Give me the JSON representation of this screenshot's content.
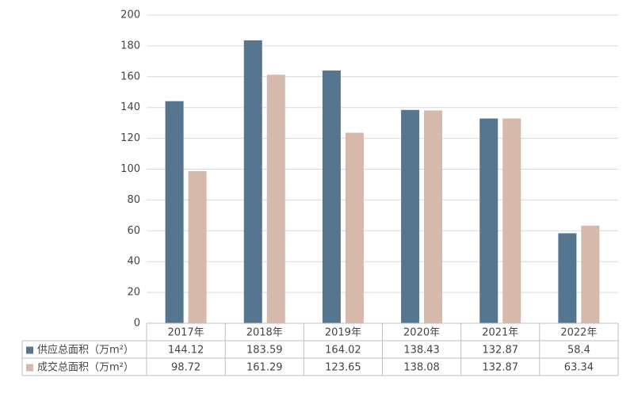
{
  "chart_data": {
    "type": "bar",
    "categories": [
      "2017年",
      "2018年",
      "2019年",
      "2020年",
      "2021年",
      "2022年"
    ],
    "series": [
      {
        "name": "供应总面积（万m²）",
        "color": "#56758f",
        "values": [
          144.12,
          183.59,
          164.02,
          138.43,
          132.87,
          58.4
        ]
      },
      {
        "name": "成交总面积（万m²）",
        "color": "#d6b9ab",
        "values": [
          98.72,
          161.29,
          123.65,
          138.08,
          132.87,
          63.34
        ]
      }
    ],
    "ylim": [
      0,
      200
    ],
    "yticks": [
      0,
      20,
      40,
      60,
      80,
      100,
      120,
      140,
      160,
      180,
      200
    ],
    "grid": true
  }
}
